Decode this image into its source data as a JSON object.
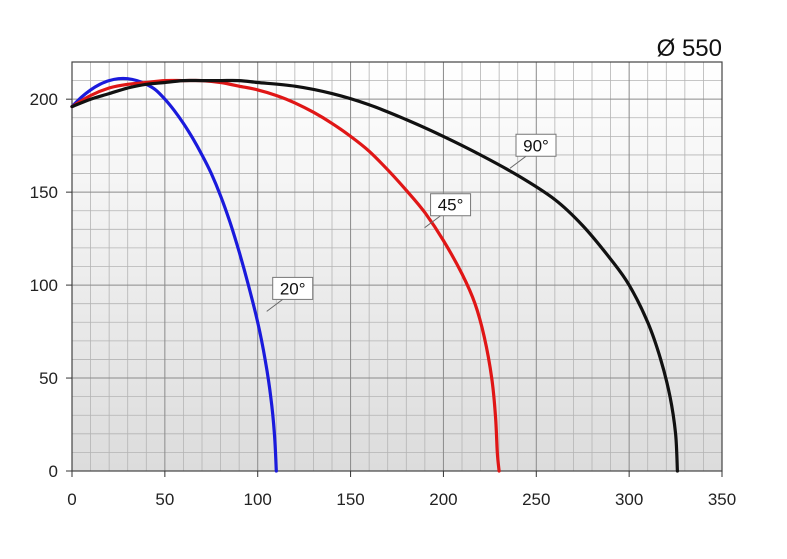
{
  "chart_data": {
    "type": "line",
    "title": "Ø 550",
    "xlabel": "",
    "ylabel": "",
    "xlim": [
      0,
      350
    ],
    "ylim": [
      0,
      220
    ],
    "xticks": [
      0,
      50,
      100,
      150,
      200,
      250,
      300,
      350
    ],
    "yticks": [
      0,
      50,
      100,
      150,
      200
    ],
    "grid": true,
    "series": [
      {
        "name": "20°",
        "color": "#1a1adc",
        "label_at": [
          107,
          88
        ],
        "points": [
          [
            0,
            196
          ],
          [
            5,
            201
          ],
          [
            10,
            205
          ],
          [
            15,
            208
          ],
          [
            20,
            210
          ],
          [
            25,
            211
          ],
          [
            30,
            211
          ],
          [
            35,
            210
          ],
          [
            40,
            208
          ],
          [
            45,
            205
          ],
          [
            50,
            200
          ],
          [
            55,
            194
          ],
          [
            60,
            187
          ],
          [
            65,
            179
          ],
          [
            70,
            170
          ],
          [
            75,
            160
          ],
          [
            80,
            148
          ],
          [
            85,
            134
          ],
          [
            90,
            118
          ],
          [
            95,
            100
          ],
          [
            100,
            80
          ],
          [
            104,
            60
          ],
          [
            107,
            40
          ],
          [
            109,
            20
          ],
          [
            110,
            0
          ]
        ]
      },
      {
        "name": "45°",
        "color": "#e01616",
        "label_at": [
          192,
          133
        ],
        "points": [
          [
            0,
            196
          ],
          [
            10,
            202
          ],
          [
            20,
            206
          ],
          [
            30,
            208
          ],
          [
            40,
            209
          ],
          [
            50,
            210
          ],
          [
            60,
            210
          ],
          [
            70,
            210
          ],
          [
            80,
            209
          ],
          [
            90,
            207
          ],
          [
            100,
            205
          ],
          [
            110,
            202
          ],
          [
            120,
            198
          ],
          [
            130,
            193
          ],
          [
            140,
            187
          ],
          [
            150,
            180
          ],
          [
            160,
            172
          ],
          [
            170,
            162
          ],
          [
            180,
            151
          ],
          [
            190,
            139
          ],
          [
            200,
            124
          ],
          [
            210,
            106
          ],
          [
            217,
            90
          ],
          [
            222,
            72
          ],
          [
            226,
            50
          ],
          [
            228,
            30
          ],
          [
            229,
            10
          ],
          [
            230,
            0
          ]
        ]
      },
      {
        "name": "90°",
        "color": "#111111",
        "label_at": [
          238,
          165
        ],
        "points": [
          [
            0,
            196
          ],
          [
            10,
            200
          ],
          [
            20,
            203
          ],
          [
            30,
            206
          ],
          [
            40,
            208
          ],
          [
            50,
            209
          ],
          [
            60,
            210
          ],
          [
            70,
            210
          ],
          [
            80,
            210
          ],
          [
            90,
            210
          ],
          [
            100,
            209
          ],
          [
            120,
            207
          ],
          [
            140,
            203
          ],
          [
            160,
            197
          ],
          [
            180,
            189
          ],
          [
            200,
            180
          ],
          [
            220,
            170
          ],
          [
            240,
            159
          ],
          [
            260,
            146
          ],
          [
            275,
            132
          ],
          [
            290,
            114
          ],
          [
            300,
            100
          ],
          [
            310,
            80
          ],
          [
            317,
            60
          ],
          [
            322,
            40
          ],
          [
            325,
            20
          ],
          [
            326,
            0
          ]
        ]
      }
    ]
  }
}
